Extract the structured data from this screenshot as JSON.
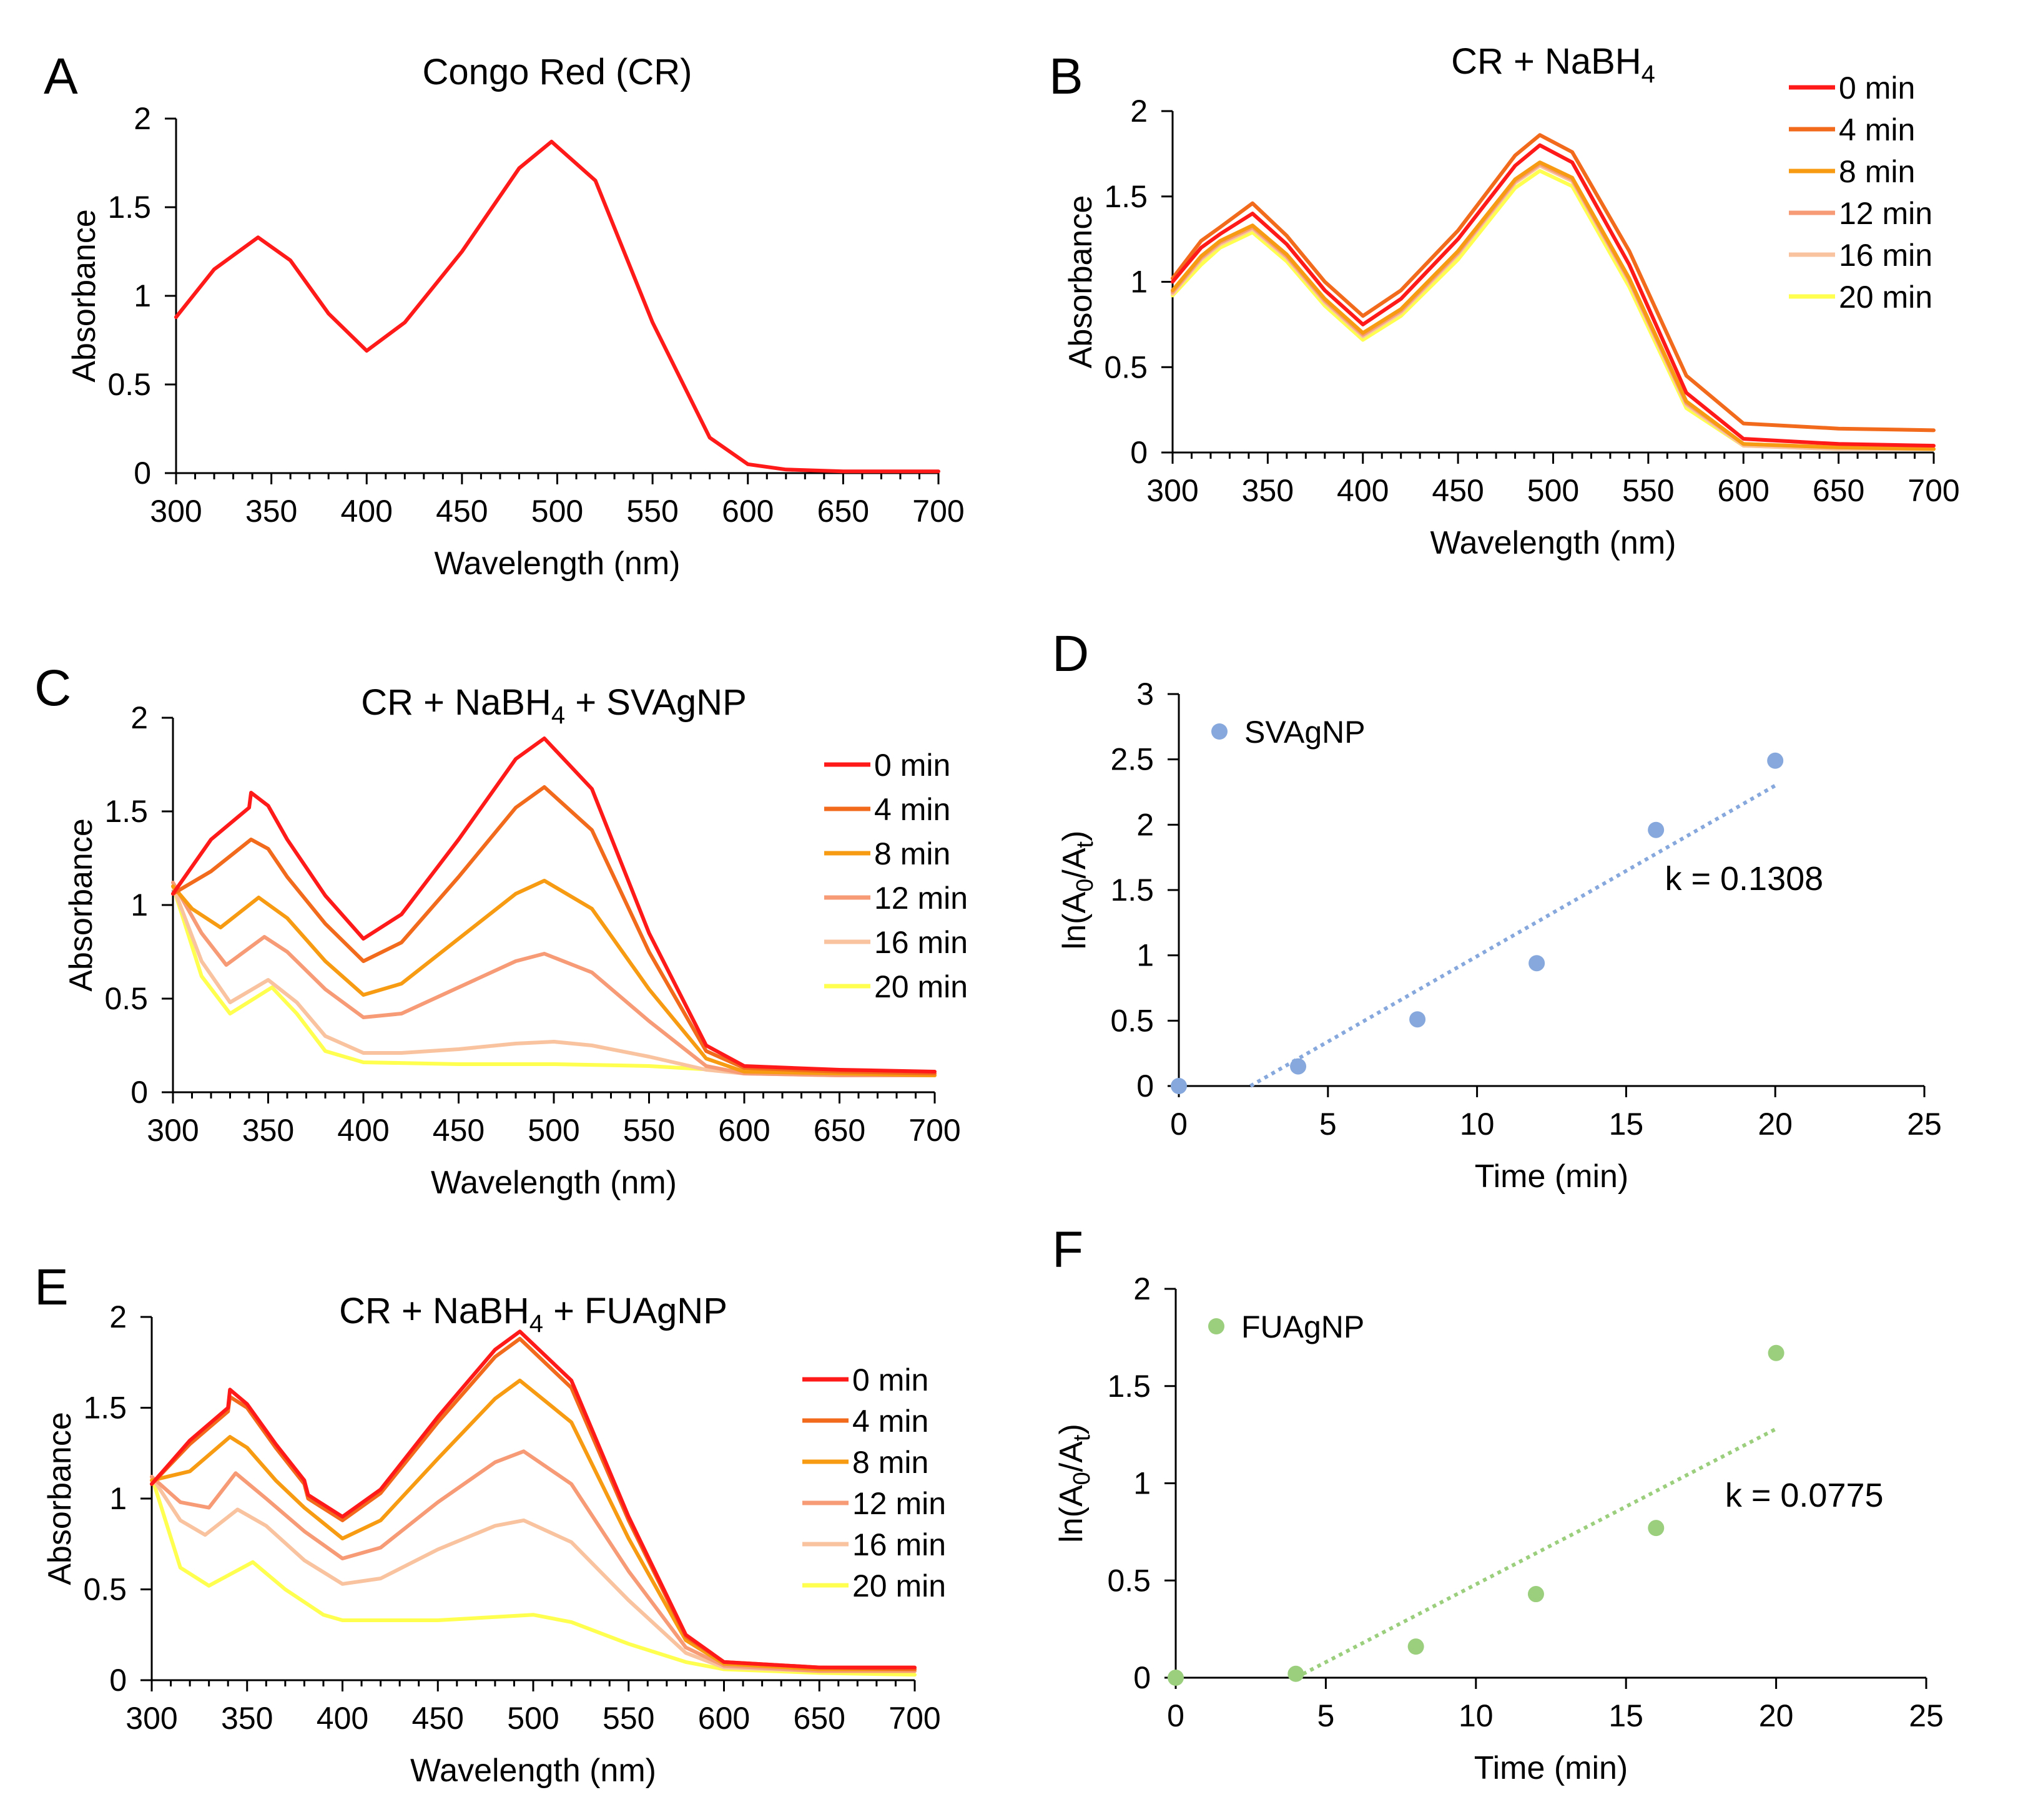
{
  "colors": {
    "0 min": "#ff1a1a",
    "4 min": "#f26a1b",
    "8 min": "#f79b12",
    "12 min": "#f79b77",
    "16 min": "#f9c3a0",
    "20 min": "#ffff50",
    "SVAgNP": "#86a8dc",
    "FUAgNP": "#9ccf7d"
  },
  "chart_data": [
    {
      "id": "A",
      "panel": "A",
      "type": "line",
      "title": "Congo Red (CR)",
      "xlabel": "Wavelength (nm)",
      "ylabel": "Absorbance",
      "xlim": [
        300,
        700
      ],
      "ylim": [
        0,
        2
      ],
      "xticks": [
        300,
        350,
        400,
        450,
        500,
        550,
        600,
        650,
        700
      ],
      "yticks": [
        0,
        0.5,
        1,
        1.5,
        2
      ],
      "legend": "none",
      "series": [
        {
          "name": "CR",
          "x": [
            300,
            320,
            343,
            360,
            380,
            400,
            420,
            450,
            480,
            497,
            520,
            550,
            580,
            600,
            620,
            650,
            700
          ],
          "y": [
            0.88,
            1.15,
            1.33,
            1.2,
            0.9,
            0.69,
            0.85,
            1.25,
            1.72,
            1.87,
            1.65,
            0.85,
            0.2,
            0.05,
            0.02,
            0.01,
            0.01
          ]
        }
      ]
    },
    {
      "id": "B",
      "panel": "B",
      "type": "line",
      "title": "CR + NaBH",
      "title_sub": "4",
      "xlabel": "Wavelength (nm)",
      "ylabel": "Absorbance",
      "xlim": [
        300,
        700
      ],
      "ylim": [
        0,
        2
      ],
      "xticks": [
        300,
        350,
        400,
        450,
        500,
        550,
        600,
        650,
        700
      ],
      "yticks": [
        0,
        0.5,
        1,
        1.5,
        2
      ],
      "legend": "top-right",
      "series": [
        {
          "name": "0 min",
          "x": [
            300,
            315,
            325,
            342,
            360,
            380,
            400,
            420,
            450,
            480,
            493,
            510,
            540,
            570,
            600,
            650,
            700
          ],
          "y": [
            1.0,
            1.2,
            1.28,
            1.4,
            1.22,
            0.95,
            0.75,
            0.9,
            1.25,
            1.68,
            1.8,
            1.7,
            1.1,
            0.35,
            0.08,
            0.05,
            0.04
          ]
        },
        {
          "name": "4 min",
          "x": [
            300,
            315,
            325,
            342,
            360,
            380,
            400,
            420,
            450,
            480,
            493,
            510,
            540,
            570,
            600,
            650,
            700
          ],
          "y": [
            1.02,
            1.24,
            1.32,
            1.46,
            1.27,
            1.0,
            0.8,
            0.95,
            1.3,
            1.74,
            1.86,
            1.76,
            1.18,
            0.45,
            0.17,
            0.14,
            0.13
          ]
        },
        {
          "name": "8 min",
          "x": [
            300,
            315,
            325,
            342,
            360,
            380,
            400,
            420,
            450,
            480,
            493,
            510,
            540,
            570,
            600,
            650,
            700
          ],
          "y": [
            0.95,
            1.15,
            1.24,
            1.33,
            1.16,
            0.9,
            0.7,
            0.84,
            1.18,
            1.6,
            1.7,
            1.61,
            1.02,
            0.3,
            0.05,
            0.03,
            0.02
          ]
        },
        {
          "name": "12 min",
          "x": [
            300,
            315,
            325,
            342,
            360,
            380,
            400,
            420,
            450,
            480,
            493,
            510,
            540,
            570,
            600,
            650,
            700
          ],
          "y": [
            0.94,
            1.14,
            1.23,
            1.32,
            1.15,
            0.89,
            0.69,
            0.83,
            1.17,
            1.59,
            1.69,
            1.6,
            1.01,
            0.29,
            0.05,
            0.03,
            0.02
          ]
        },
        {
          "name": "16 min",
          "x": [
            300,
            315,
            325,
            342,
            360,
            380,
            400,
            420,
            450,
            480,
            493,
            510,
            540,
            570,
            600,
            650,
            700
          ],
          "y": [
            0.93,
            1.13,
            1.22,
            1.31,
            1.14,
            0.88,
            0.68,
            0.82,
            1.16,
            1.58,
            1.68,
            1.59,
            1.0,
            0.28,
            0.04,
            0.02,
            0.02
          ]
        },
        {
          "name": "20 min",
          "x": [
            300,
            315,
            325,
            342,
            360,
            380,
            400,
            420,
            450,
            480,
            493,
            510,
            540,
            570,
            600,
            650,
            700
          ],
          "y": [
            0.92,
            1.1,
            1.2,
            1.29,
            1.12,
            0.86,
            0.66,
            0.8,
            1.13,
            1.55,
            1.65,
            1.56,
            0.97,
            0.26,
            0.04,
            0.02,
            0.02
          ]
        }
      ]
    },
    {
      "id": "C",
      "panel": "C",
      "type": "line",
      "title": "CR + NaBH",
      "title_sub": "4",
      "title_tail": " + SVAgNP",
      "xlabel": "Wavelength (nm)",
      "ylabel": "Absorbance",
      "xlim": [
        300,
        700
      ],
      "ylim": [
        0,
        2
      ],
      "xticks": [
        300,
        350,
        400,
        450,
        500,
        550,
        600,
        650,
        700
      ],
      "yticks": [
        0,
        0.5,
        1,
        1.5,
        2
      ],
      "legend": "right",
      "series": [
        {
          "name": "0 min",
          "x": [
            300,
            320,
            340,
            341,
            350,
            360,
            380,
            400,
            420,
            450,
            480,
            495,
            520,
            550,
            580,
            600,
            650,
            700
          ],
          "y": [
            1.06,
            1.35,
            1.52,
            1.6,
            1.53,
            1.35,
            1.05,
            0.82,
            0.95,
            1.35,
            1.78,
            1.89,
            1.62,
            0.85,
            0.25,
            0.14,
            0.12,
            0.11
          ]
        },
        {
          "name": "4 min",
          "x": [
            300,
            320,
            341,
            350,
            360,
            380,
            400,
            420,
            450,
            480,
            495,
            520,
            550,
            580,
            600,
            650,
            700
          ],
          "y": [
            1.06,
            1.18,
            1.35,
            1.3,
            1.15,
            0.9,
            0.7,
            0.8,
            1.15,
            1.52,
            1.63,
            1.4,
            0.75,
            0.22,
            0.13,
            0.11,
            0.1
          ]
        },
        {
          "name": "8 min",
          "x": [
            300,
            310,
            325,
            345,
            360,
            380,
            400,
            420,
            450,
            480,
            495,
            520,
            550,
            580,
            600,
            650,
            700
          ],
          "y": [
            1.1,
            0.98,
            0.88,
            1.04,
            0.93,
            0.7,
            0.52,
            0.58,
            0.82,
            1.06,
            1.13,
            0.98,
            0.55,
            0.18,
            0.11,
            0.1,
            0.09
          ]
        },
        {
          "name": "12 min",
          "x": [
            300,
            315,
            328,
            348,
            360,
            380,
            400,
            420,
            450,
            480,
            495,
            520,
            550,
            580,
            600,
            650,
            700
          ],
          "y": [
            1.12,
            0.85,
            0.68,
            0.83,
            0.75,
            0.55,
            0.4,
            0.42,
            0.56,
            0.7,
            0.74,
            0.64,
            0.38,
            0.14,
            0.1,
            0.09,
            0.09
          ]
        },
        {
          "name": "16 min",
          "x": [
            300,
            315,
            330,
            350,
            365,
            380,
            400,
            420,
            450,
            480,
            500,
            520,
            550,
            580,
            600,
            650,
            700
          ],
          "y": [
            1.1,
            0.7,
            0.48,
            0.6,
            0.48,
            0.3,
            0.21,
            0.21,
            0.23,
            0.26,
            0.27,
            0.25,
            0.19,
            0.12,
            0.1,
            0.09,
            0.09
          ]
        },
        {
          "name": "20 min",
          "x": [
            300,
            315,
            330,
            352,
            365,
            380,
            400,
            450,
            500,
            550,
            600,
            650,
            700
          ],
          "y": [
            1.1,
            0.62,
            0.42,
            0.56,
            0.42,
            0.22,
            0.16,
            0.15,
            0.15,
            0.14,
            0.11,
            0.1,
            0.09
          ]
        }
      ]
    },
    {
      "id": "D",
      "panel": "D",
      "type": "scatter",
      "xlabel": "Time (min)",
      "ylabel": "ln(A0/At)",
      "xlim": [
        0,
        25
      ],
      "ylim": [
        0,
        3
      ],
      "xticks": [
        0,
        5,
        10,
        15,
        20,
        25
      ],
      "yticks": [
        0,
        0.5,
        1,
        1.5,
        2,
        2.5,
        3
      ],
      "legend": "top-left",
      "annotation": "k = 0.1308",
      "series": [
        {
          "name": "SVAgNP",
          "x": [
            0,
            4,
            8,
            12,
            16,
            20
          ],
          "y": [
            0,
            0.15,
            0.51,
            0.94,
            1.96,
            2.49
          ],
          "trendline": {
            "x": [
              2.4,
              20
            ],
            "y": [
              0,
              2.3
            ]
          }
        }
      ]
    },
    {
      "id": "E",
      "panel": "E",
      "type": "line",
      "title": "CR + NaBH",
      "title_sub": "4",
      "title_tail": " + FUAgNP",
      "xlabel": "Wavelength (nm)",
      "ylabel": "Absorbance",
      "xlim": [
        300,
        700
      ],
      "ylim": [
        0,
        2
      ],
      "xticks": [
        300,
        350,
        400,
        450,
        500,
        550,
        600,
        650,
        700
      ],
      "yticks": [
        0,
        0.5,
        1,
        1.5,
        2
      ],
      "legend": "right",
      "series": [
        {
          "name": "0 min",
          "x": [
            300,
            320,
            340,
            341,
            350,
            365,
            380,
            382,
            400,
            420,
            450,
            480,
            493,
            520,
            550,
            580,
            600,
            650,
            700
          ],
          "y": [
            1.08,
            1.32,
            1.5,
            1.6,
            1.52,
            1.3,
            1.1,
            1.02,
            0.9,
            1.05,
            1.45,
            1.82,
            1.92,
            1.65,
            0.9,
            0.25,
            0.1,
            0.07,
            0.07
          ]
        },
        {
          "name": "4 min",
          "x": [
            300,
            320,
            340,
            341,
            350,
            365,
            380,
            382,
            400,
            420,
            450,
            480,
            493,
            520,
            550,
            580,
            600,
            650,
            700
          ],
          "y": [
            1.08,
            1.3,
            1.48,
            1.56,
            1.5,
            1.28,
            1.08,
            1.0,
            0.88,
            1.03,
            1.42,
            1.78,
            1.88,
            1.61,
            0.88,
            0.24,
            0.1,
            0.07,
            0.06
          ]
        },
        {
          "name": "8 min",
          "x": [
            300,
            320,
            341,
            350,
            365,
            380,
            400,
            420,
            450,
            480,
            493,
            520,
            550,
            580,
            600,
            650,
            700
          ],
          "y": [
            1.1,
            1.15,
            1.34,
            1.28,
            1.1,
            0.95,
            0.78,
            0.88,
            1.22,
            1.55,
            1.65,
            1.42,
            0.78,
            0.22,
            0.09,
            0.06,
            0.06
          ]
        },
        {
          "name": "12 min",
          "x": [
            300,
            315,
            330,
            344,
            360,
            380,
            400,
            420,
            450,
            480,
            495,
            520,
            550,
            580,
            600,
            650,
            700
          ],
          "y": [
            1.12,
            0.98,
            0.95,
            1.14,
            1.0,
            0.82,
            0.67,
            0.73,
            0.98,
            1.2,
            1.26,
            1.08,
            0.6,
            0.18,
            0.08,
            0.05,
            0.05
          ]
        },
        {
          "name": "16 min",
          "x": [
            300,
            315,
            328,
            345,
            360,
            380,
            400,
            420,
            450,
            480,
            495,
            520,
            550,
            580,
            600,
            650,
            700
          ],
          "y": [
            1.12,
            0.88,
            0.8,
            0.94,
            0.85,
            0.66,
            0.53,
            0.56,
            0.72,
            0.85,
            0.88,
            0.76,
            0.44,
            0.15,
            0.07,
            0.05,
            0.05
          ]
        },
        {
          "name": "20 min",
          "x": [
            300,
            315,
            330,
            353,
            370,
            390,
            400,
            450,
            500,
            520,
            550,
            580,
            600,
            650,
            700
          ],
          "y": [
            1.12,
            0.62,
            0.52,
            0.65,
            0.5,
            0.36,
            0.33,
            0.33,
            0.36,
            0.32,
            0.2,
            0.1,
            0.06,
            0.04,
            0.03
          ]
        }
      ]
    },
    {
      "id": "F",
      "panel": "F",
      "type": "scatter",
      "xlabel": "Time (min)",
      "ylabel": "ln(A0/At)",
      "xlim": [
        0,
        25
      ],
      "ylim": [
        0,
        2
      ],
      "xticks": [
        0,
        5,
        10,
        15,
        20,
        25
      ],
      "yticks": [
        0,
        0.5,
        1,
        1.5,
        2
      ],
      "legend": "top-left",
      "annotation": "k = 0.0775",
      "series": [
        {
          "name": "FUAgNP",
          "x": [
            0,
            4,
            8,
            12,
            16,
            20
          ],
          "y": [
            0,
            0.02,
            0.16,
            0.43,
            0.77,
            1.67
          ],
          "trendline": {
            "x": [
              4,
              20
            ],
            "y": [
              0,
              1.28
            ]
          }
        }
      ]
    }
  ]
}
